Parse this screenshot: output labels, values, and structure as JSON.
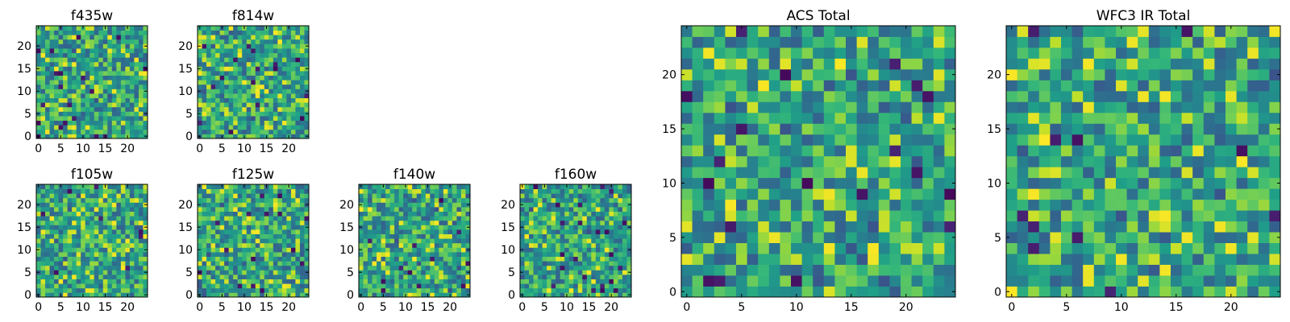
{
  "chart_data": [
    {
      "type": "heatmap",
      "title": "f435w",
      "xlim": [
        -0.5,
        24.5
      ],
      "ylim": [
        -0.5,
        24.5
      ],
      "xticks": [
        0,
        5,
        10,
        15,
        20
      ],
      "yticks": [
        0,
        5,
        10,
        15,
        20
      ],
      "grid": false,
      "colormap": "viridis",
      "size": 25
    },
    {
      "type": "heatmap",
      "title": "f814w",
      "xlim": [
        -0.5,
        24.5
      ],
      "ylim": [
        -0.5,
        24.5
      ],
      "xticks": [
        0,
        5,
        10,
        15,
        20
      ],
      "yticks": [
        0,
        5,
        10,
        15,
        20
      ],
      "grid": false,
      "colormap": "viridis",
      "size": 25
    },
    {
      "type": "heatmap",
      "title": "f105w",
      "xlim": [
        -0.5,
        24.5
      ],
      "ylim": [
        -0.5,
        24.5
      ],
      "xticks": [
        0,
        5,
        10,
        15,
        20
      ],
      "yticks": [
        0,
        5,
        10,
        15,
        20
      ],
      "grid": false,
      "colormap": "viridis",
      "size": 25
    },
    {
      "type": "heatmap",
      "title": "f125w",
      "xlim": [
        -0.5,
        24.5
      ],
      "ylim": [
        -0.5,
        24.5
      ],
      "xticks": [
        0,
        5,
        10,
        15,
        20
      ],
      "yticks": [
        0,
        5,
        10,
        15,
        20
      ],
      "grid": false,
      "colormap": "viridis",
      "size": 25
    },
    {
      "type": "heatmap",
      "title": "f140w",
      "xlim": [
        -0.5,
        24.5
      ],
      "ylim": [
        -0.5,
        24.5
      ],
      "xticks": [
        0,
        5,
        10,
        15,
        20
      ],
      "yticks": [
        0,
        5,
        10,
        15,
        20
      ],
      "grid": false,
      "colormap": "viridis",
      "size": 25
    },
    {
      "type": "heatmap",
      "title": "f160w",
      "xlim": [
        -0.5,
        24.5
      ],
      "ylim": [
        -0.5,
        24.5
      ],
      "xticks": [
        0,
        5,
        10,
        15,
        20
      ],
      "yticks": [
        0,
        5,
        10,
        15,
        20
      ],
      "grid": false,
      "colormap": "viridis",
      "size": 25
    },
    {
      "type": "heatmap",
      "title": "ACS Total",
      "xlim": [
        -0.5,
        24.5
      ],
      "ylim": [
        -0.5,
        24.5
      ],
      "xticks": [
        0,
        5,
        10,
        15,
        20
      ],
      "yticks": [
        0,
        5,
        10,
        15,
        20
      ],
      "grid": false,
      "colormap": "viridis",
      "size": 25
    },
    {
      "type": "heatmap",
      "title": "WFC3 IR Total",
      "xlim": [
        -0.5,
        24.5
      ],
      "ylim": [
        -0.5,
        24.5
      ],
      "xticks": [
        0,
        5,
        10,
        15,
        20
      ],
      "yticks": [
        0,
        5,
        10,
        15,
        20
      ],
      "grid": false,
      "colormap": "viridis",
      "size": 25
    }
  ]
}
